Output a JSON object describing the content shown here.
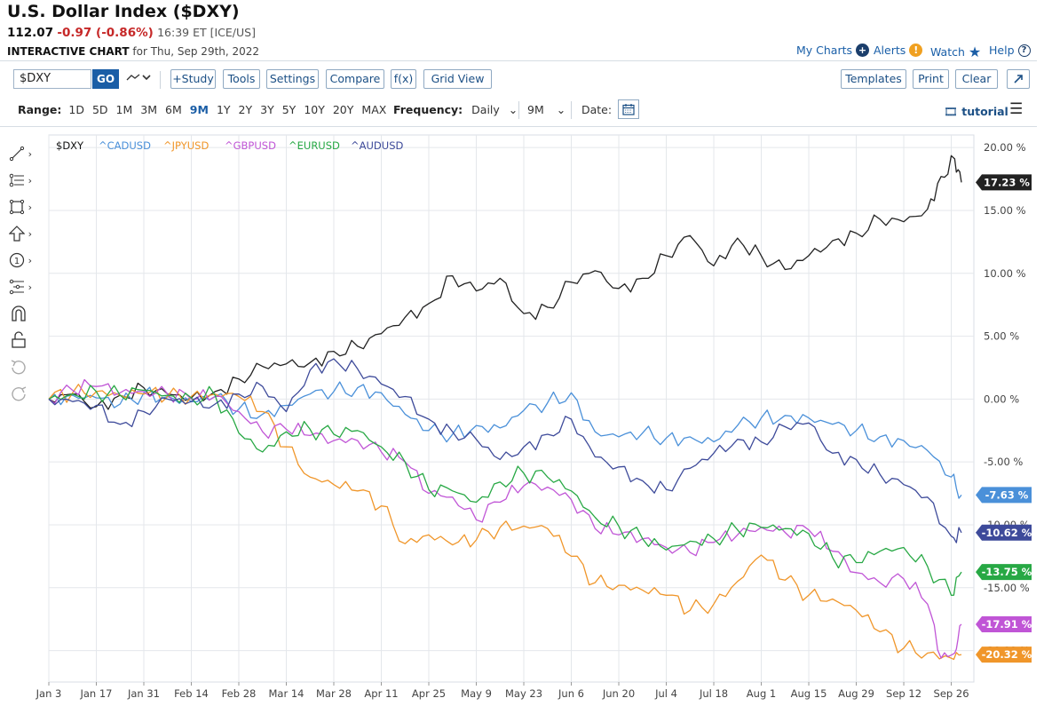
{
  "header": {
    "title": "U.S. Dollar Index ($DXY)",
    "last": "112.07",
    "change": "-0.97 (-0.86%)",
    "time": "16:39 ET [ICE/US]",
    "interactive_label": "INTERACTIVE CHART",
    "interactive_date": "for Thu, Sep 29th, 2022"
  },
  "links": {
    "my_charts": "My Charts",
    "alerts": "Alerts",
    "watch": "Watch",
    "help": "Help"
  },
  "toolbar": {
    "symbol_value": "$DXY",
    "go": "GO",
    "study": "+Study",
    "tools": "Tools",
    "settings": "Settings",
    "compare": "Compare",
    "fx": "f(x)",
    "grid_view": "Grid View",
    "templates": "Templates",
    "print": "Print",
    "clear": "Clear"
  },
  "rangebar": {
    "label": "Range:",
    "options": [
      "1D",
      "5D",
      "1M",
      "3M",
      "6M",
      "9M",
      "1Y",
      "2Y",
      "3Y",
      "5Y",
      "10Y",
      "20Y",
      "MAX"
    ],
    "selected": "9M",
    "frequency_label": "Frequency:",
    "frequency": "Daily",
    "period": "9M",
    "date_label": "Date:",
    "tutorial": "tutorial"
  },
  "colors": {
    "DXY": "#222222",
    "CADUSD": "#4a90d9",
    "JPYUSD": "#f0962a",
    "GBPUSD": "#c055d6",
    "EURUSD": "#27a844",
    "AUDUSD": "#3d4a9a",
    "accent": "#1b5ea6"
  },
  "chart_data": {
    "type": "line",
    "ylim": [
      -22.5,
      21
    ],
    "yticks": [
      "20.00 %",
      "15.00 %",
      "10.00 %",
      "5.00 %",
      "0.00 %",
      "-5.00 %",
      "-10.00 %",
      "-15.00 %",
      "-20.00 %"
    ],
    "ytick_values": [
      20,
      15,
      10,
      5,
      0,
      -5,
      -10,
      -15,
      -20
    ],
    "xticks": [
      "Jan 3",
      "Jan 17",
      "Jan 31",
      "Feb 14",
      "Feb 28",
      "Mar 14",
      "Mar 28",
      "Apr 11",
      "Apr 25",
      "May 9",
      "May 23",
      "Jun 6",
      "Jun 20",
      "Jul 4",
      "Jul 18",
      "Aug 1",
      "Aug 15",
      "Aug 29",
      "Sep 12",
      "Sep 26"
    ],
    "xtick_days": [
      0,
      14,
      28,
      42,
      56,
      70,
      84,
      98,
      112,
      126,
      140,
      154,
      168,
      182,
      196,
      210,
      224,
      238,
      252,
      266
    ],
    "x_start": "2022-01-03",
    "x_end": "2022-09-29",
    "series": [
      {
        "name": "$DXY",
        "key": "DXY",
        "end_label": "17.23 %",
        "x": [
          "2022-01-03",
          "2022-01-10",
          "2022-01-17",
          "2022-01-24",
          "2022-01-31",
          "2022-02-07",
          "2022-02-14",
          "2022-02-21",
          "2022-02-28",
          "2022-03-07",
          "2022-03-14",
          "2022-03-21",
          "2022-03-28",
          "2022-04-04",
          "2022-04-11",
          "2022-04-18",
          "2022-04-25",
          "2022-05-02",
          "2022-05-09",
          "2022-05-16",
          "2022-05-23",
          "2022-05-30",
          "2022-06-06",
          "2022-06-13",
          "2022-06-20",
          "2022-06-27",
          "2022-07-04",
          "2022-07-11",
          "2022-07-18",
          "2022-07-25",
          "2022-08-01",
          "2022-08-08",
          "2022-08-15",
          "2022-08-22",
          "2022-08-29",
          "2022-09-05",
          "2022-09-12",
          "2022-09-19",
          "2022-09-23",
          "2022-09-27",
          "2022-09-29"
        ],
        "y": [
          0,
          0.4,
          -0.6,
          0.3,
          0.9,
          0.4,
          0.1,
          0.6,
          1.6,
          2.6,
          2.8,
          2.9,
          3.8,
          4.2,
          5.2,
          6.5,
          7.6,
          9.8,
          8.6,
          9.6,
          6.8,
          7.3,
          9.3,
          10.2,
          8.8,
          9.6,
          11.4,
          13.0,
          10.6,
          12.8,
          11.4,
          10.3,
          11.4,
          12.6,
          13.2,
          14.3,
          14.1,
          15.1,
          17.7,
          19.1,
          17.23
        ]
      },
      {
        "name": "^CADUSD",
        "key": "CADUSD",
        "end_label": "-7.63 %",
        "x": [
          "2022-01-03",
          "2022-01-10",
          "2022-01-17",
          "2022-01-24",
          "2022-01-31",
          "2022-02-07",
          "2022-02-14",
          "2022-02-21",
          "2022-02-28",
          "2022-03-07",
          "2022-03-14",
          "2022-03-21",
          "2022-03-28",
          "2022-04-04",
          "2022-04-11",
          "2022-04-18",
          "2022-04-25",
          "2022-05-02",
          "2022-05-09",
          "2022-05-16",
          "2022-05-23",
          "2022-05-30",
          "2022-06-06",
          "2022-06-13",
          "2022-06-20",
          "2022-06-27",
          "2022-07-04",
          "2022-07-11",
          "2022-07-18",
          "2022-07-25",
          "2022-08-01",
          "2022-08-08",
          "2022-08-15",
          "2022-08-22",
          "2022-08-29",
          "2022-09-05",
          "2022-09-12",
          "2022-09-19",
          "2022-09-26",
          "2022-09-29"
        ],
        "y": [
          0,
          0.3,
          0.1,
          -0.4,
          0.5,
          0.2,
          -0.2,
          0.2,
          -0.8,
          -1.2,
          -0.5,
          0.4,
          0.6,
          0.9,
          0.5,
          -1.2,
          -2.5,
          -2.8,
          -2.1,
          -2.3,
          -0.9,
          -0.3,
          0.5,
          -2.6,
          -3.0,
          -2.7,
          -3.1,
          -3.0,
          -3.4,
          -2.1,
          -1.5,
          -1.3,
          -1.5,
          -2.0,
          -2.5,
          -3.0,
          -3.3,
          -4.1,
          -6.2,
          -7.63
        ]
      },
      {
        "name": "^JPYUSD",
        "key": "JPYUSD",
        "end_label": "-20.32 %",
        "x": [
          "2022-01-03",
          "2022-01-10",
          "2022-01-17",
          "2022-01-24",
          "2022-01-31",
          "2022-02-07",
          "2022-02-14",
          "2022-02-21",
          "2022-02-28",
          "2022-03-07",
          "2022-03-14",
          "2022-03-21",
          "2022-03-28",
          "2022-04-04",
          "2022-04-11",
          "2022-04-18",
          "2022-04-25",
          "2022-05-02",
          "2022-05-09",
          "2022-05-16",
          "2022-05-23",
          "2022-05-30",
          "2022-06-06",
          "2022-06-13",
          "2022-06-20",
          "2022-06-27",
          "2022-07-04",
          "2022-07-11",
          "2022-07-18",
          "2022-07-25",
          "2022-08-01",
          "2022-08-08",
          "2022-08-15",
          "2022-08-22",
          "2022-08-29",
          "2022-09-05",
          "2022-09-12",
          "2022-09-19",
          "2022-09-26",
          "2022-09-29"
        ],
        "y": [
          0,
          0.5,
          0.6,
          0.3,
          0.4,
          0.2,
          0.2,
          0.4,
          0.2,
          -1.0,
          -3.8,
          -6.2,
          -6.8,
          -7.3,
          -8.5,
          -11.5,
          -10.8,
          -11.6,
          -11.2,
          -10.2,
          -10.1,
          -10.3,
          -12.5,
          -14.6,
          -14.8,
          -15.2,
          -15.6,
          -16.8,
          -16.3,
          -14.5,
          -12.4,
          -14.4,
          -15.6,
          -15.9,
          -16.8,
          -18.5,
          -19.8,
          -20.2,
          -20.6,
          -20.32
        ]
      },
      {
        "name": "^GBPUSD",
        "key": "GBPUSD",
        "end_label": "-17.91 %",
        "x": [
          "2022-01-03",
          "2022-01-10",
          "2022-01-17",
          "2022-01-24",
          "2022-01-31",
          "2022-02-07",
          "2022-02-14",
          "2022-02-21",
          "2022-02-28",
          "2022-03-07",
          "2022-03-14",
          "2022-03-21",
          "2022-03-28",
          "2022-04-04",
          "2022-04-11",
          "2022-04-18",
          "2022-04-25",
          "2022-05-02",
          "2022-05-09",
          "2022-05-16",
          "2022-05-23",
          "2022-05-30",
          "2022-06-06",
          "2022-06-13",
          "2022-06-20",
          "2022-06-27",
          "2022-07-04",
          "2022-07-11",
          "2022-07-18",
          "2022-07-25",
          "2022-08-01",
          "2022-08-08",
          "2022-08-15",
          "2022-08-22",
          "2022-08-29",
          "2022-09-05",
          "2022-09-12",
          "2022-09-19",
          "2022-09-23",
          "2022-09-27",
          "2022-09-29"
        ],
        "y": [
          0,
          0.7,
          1.0,
          0.5,
          0.6,
          0.4,
          0.0,
          0.2,
          -1.0,
          -2.6,
          -2.4,
          -2.9,
          -3.3,
          -3.3,
          -4.2,
          -5.0,
          -7.5,
          -7.8,
          -9.6,
          -8.2,
          -6.9,
          -7.0,
          -8.0,
          -10.3,
          -10.8,
          -11.1,
          -11.8,
          -12.2,
          -11.4,
          -10.8,
          -10.2,
          -10.6,
          -10.4,
          -12.1,
          -13.8,
          -14.6,
          -14.3,
          -16.3,
          -20.6,
          -20.2,
          -17.91
        ]
      },
      {
        "name": "^EURUSD",
        "key": "EURUSD",
        "end_label": "-13.75 %",
        "x": [
          "2022-01-03",
          "2022-01-10",
          "2022-01-17",
          "2022-01-24",
          "2022-01-31",
          "2022-02-07",
          "2022-02-14",
          "2022-02-21",
          "2022-02-28",
          "2022-03-07",
          "2022-03-14",
          "2022-03-21",
          "2022-03-28",
          "2022-04-04",
          "2022-04-11",
          "2022-04-18",
          "2022-04-25",
          "2022-05-02",
          "2022-05-09",
          "2022-05-16",
          "2022-05-23",
          "2022-05-30",
          "2022-06-06",
          "2022-06-13",
          "2022-06-20",
          "2022-06-27",
          "2022-07-04",
          "2022-07-11",
          "2022-07-18",
          "2022-07-25",
          "2022-08-01",
          "2022-08-08",
          "2022-08-15",
          "2022-08-22",
          "2022-08-29",
          "2022-09-05",
          "2022-09-12",
          "2022-09-19",
          "2022-09-26",
          "2022-09-29"
        ],
        "y": [
          0,
          0.4,
          0.6,
          0.3,
          0.7,
          0.3,
          0.1,
          0.3,
          -2.7,
          -4.2,
          -2.6,
          -2.4,
          -2.8,
          -2.5,
          -3.8,
          -5.0,
          -7.2,
          -7.3,
          -8.2,
          -6.6,
          -5.9,
          -6.2,
          -7.3,
          -9.4,
          -10.1,
          -11.1,
          -12.0,
          -11.3,
          -11.1,
          -10.4,
          -10.2,
          -10.3,
          -10.7,
          -12.6,
          -13.0,
          -12.1,
          -11.8,
          -13.3,
          -15.6,
          -13.75
        ]
      },
      {
        "name": "^AUDUSD",
        "key": "AUDUSD",
        "end_label": "-10.62 %",
        "x": [
          "2022-01-03",
          "2022-01-10",
          "2022-01-17",
          "2022-01-24",
          "2022-01-31",
          "2022-02-07",
          "2022-02-14",
          "2022-02-21",
          "2022-02-28",
          "2022-03-07",
          "2022-03-14",
          "2022-03-21",
          "2022-03-28",
          "2022-04-04",
          "2022-04-11",
          "2022-04-18",
          "2022-04-25",
          "2022-05-02",
          "2022-05-09",
          "2022-05-16",
          "2022-05-23",
          "2022-05-30",
          "2022-06-06",
          "2022-06-13",
          "2022-06-20",
          "2022-06-27",
          "2022-07-04",
          "2022-07-11",
          "2022-07-18",
          "2022-07-25",
          "2022-08-01",
          "2022-08-08",
          "2022-08-15",
          "2022-08-22",
          "2022-08-29",
          "2022-09-05",
          "2022-09-12",
          "2022-09-19",
          "2022-09-26",
          "2022-09-29"
        ],
        "y": [
          0,
          -0.2,
          -0.5,
          -2.0,
          -1.0,
          0.0,
          -0.2,
          -0.4,
          0.4,
          1.0,
          -1.0,
          2.3,
          3.2,
          2.4,
          1.2,
          0.2,
          -1.6,
          -2.6,
          -3.2,
          -4.8,
          -3.8,
          -2.8,
          -1.6,
          -4.6,
          -5.4,
          -6.5,
          -7.2,
          -5.5,
          -4.3,
          -3.2,
          -3.4,
          -2.2,
          -1.9,
          -4.3,
          -4.8,
          -6.0,
          -6.8,
          -7.8,
          -10.9,
          -10.62
        ]
      }
    ]
  },
  "left_tools": [
    {
      "name": "line-tool-icon"
    },
    {
      "name": "fib-tool-icon"
    },
    {
      "name": "shape-tool-icon"
    },
    {
      "name": "arrow-tool-icon"
    },
    {
      "name": "counter-tool-icon"
    },
    {
      "name": "pitchfork-tool-icon"
    },
    {
      "name": "magnet-icon"
    },
    {
      "name": "unlock-icon"
    },
    {
      "name": "undo-icon"
    },
    {
      "name": "redo-icon"
    }
  ]
}
